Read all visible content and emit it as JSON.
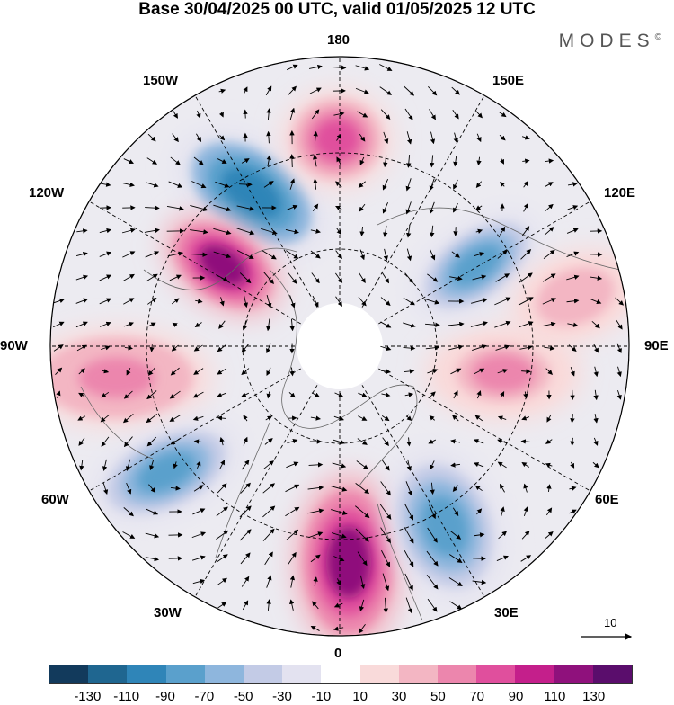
{
  "title": "Base 30/04/2025 00 UTC, valid 01/05/2025 12 UTC",
  "brand": "MODES",
  "brand_mark": "©",
  "longitude_labels": {
    "top": "180",
    "bottom": "0",
    "left": "90W",
    "right": "90E",
    "upper_left": "150W",
    "upper_right": "150E",
    "mid_upper_left": "120W",
    "mid_upper_right": "120E",
    "mid_lower_left": "60W",
    "mid_lower_right": "60E",
    "lower_left": "30W",
    "lower_right": "30E"
  },
  "reference_vector": {
    "label": "10"
  },
  "colorbar": {
    "colors": [
      "#123a5c",
      "#1f6690",
      "#2f85b8",
      "#5aa0cc",
      "#8eb6dd",
      "#c3cbe6",
      "#e3e2f0",
      "#ffffff",
      "#f9dada",
      "#f3b6c3",
      "#ec86ad",
      "#e04f9d",
      "#c41f8b",
      "#8f117c",
      "#5a0d6c"
    ],
    "ticks": [
      "-130",
      "-110",
      "-90",
      "-70",
      "-50",
      "-30",
      "-10",
      "10",
      "30",
      "50",
      "70",
      "90",
      "110",
      "130"
    ]
  },
  "anomalies": [
    {
      "name": "north-pacific-low",
      "value": -90
    },
    {
      "name": "alaska-high",
      "value": 80
    },
    {
      "name": "canada-high",
      "value": 110
    },
    {
      "name": "hudson-high",
      "value": 60
    },
    {
      "name": "north-atlantic-low",
      "value": -70
    },
    {
      "name": "europe-high",
      "value": 110
    },
    {
      "name": "east-europe-low",
      "value": -80
    },
    {
      "name": "central-siberia-high",
      "value": 50
    },
    {
      "name": "east-siberia-low",
      "value": -70
    },
    {
      "name": "west-siberia-high",
      "value": 40
    }
  ]
}
